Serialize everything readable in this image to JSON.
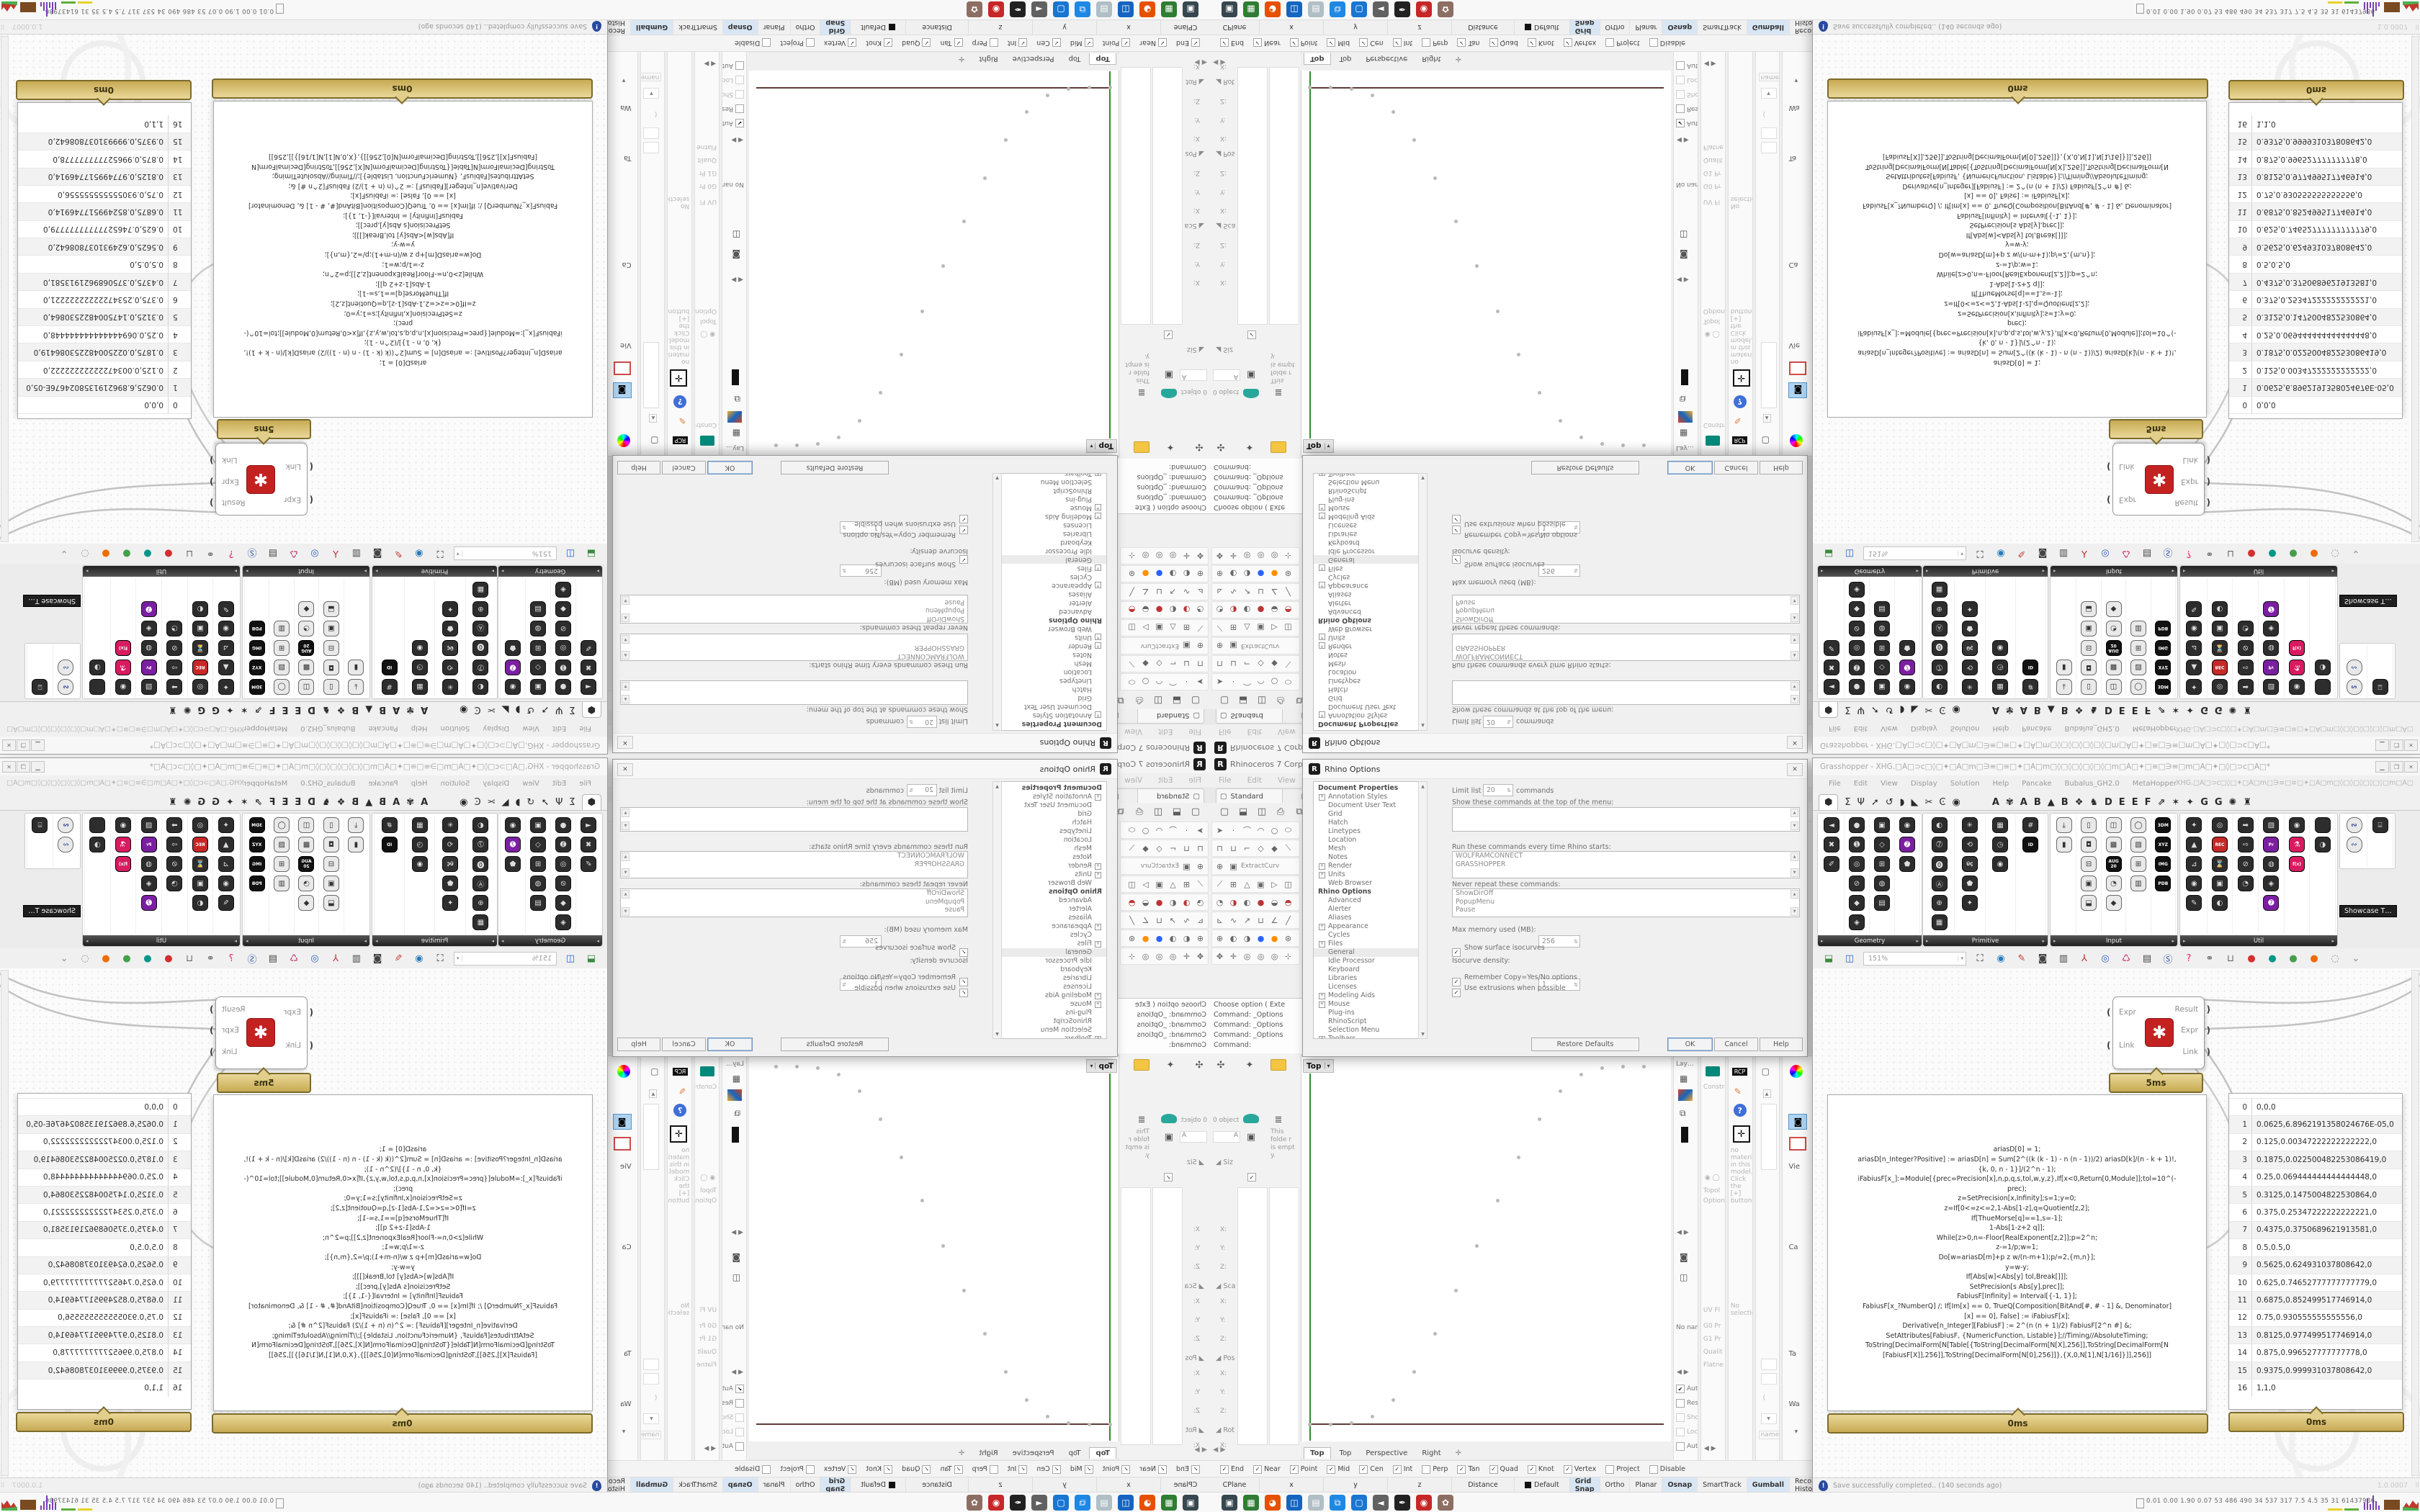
{
  "rhino": {
    "logo_letter": "R",
    "title": "Rhinoceros 7 Corporate -",
    "menu": [
      "File",
      "Edit",
      "View",
      "Curve"
    ],
    "toolbar_tab": "Standard",
    "toolbar_tab_glyph": "▢",
    "main_toolbar": [
      "▢",
      "⬓",
      "◫",
      "⎙",
      "⧉",
      "✂"
    ],
    "dock_rows": [
      [
        "➤",
        "·",
        "⌒",
        "◠",
        "○",
        "⬭"
      ],
      [
        "⊓",
        "⊔",
        "⌐",
        "◇",
        "◆",
        "⟍"
      ],
      [
        "⊕",
        "▣"
      ],
      [
        "⟋",
        "⊞",
        "△",
        "▣",
        "▷",
        "◫"
      ],
      [
        "◔",
        "◑",
        "◐",
        "●",
        "◒",
        "◓"
      ],
      [
        "⊾",
        "∿",
        "↗",
        "⊔",
        "∠",
        "╱"
      ],
      [
        "⊕",
        "◐",
        "◑",
        "●",
        "●",
        "⊛"
      ],
      [
        "✥",
        "✛",
        "◎",
        "◎",
        "◎",
        "⊹"
      ]
    ],
    "dock_row3_label": "ExtractCurv",
    "command_lines": [
      "Choose option ( Exte",
      "Command: _Options",
      "Command: _Options",
      "Command: _Options",
      "Command:"
    ],
    "left_panel": {
      "object_count": "0 object",
      "field_a": "A",
      "folder_note": "This folde r is empt y.",
      "size_section": "Siz",
      "sections": [
        "Sca",
        "Pos",
        "Rot"
      ],
      "axis_labels": [
        "X:",
        "Y:",
        "Z:"
      ],
      "nav": "◀ ▶"
    },
    "viewport": {
      "active_tab": "Top",
      "tab_caret": "▾",
      "tabs": [
        "Top",
        "Top",
        "Perspective",
        "Right"
      ],
      "new_tab": "✛"
    },
    "right_dock": {
      "layers_label": "Lay…",
      "noname_label": "No nam",
      "checks": [
        {
          "label": "Aut",
          "checked": true,
          "dim": false
        },
        {
          "label": "Res",
          "checked": false,
          "dim": false
        },
        {
          "label": "Sho",
          "checked": false,
          "dim": true
        },
        {
          "label": "Loc",
          "checked": false,
          "dim": true
        },
        {
          "label": "Aut",
          "checked": false,
          "dim": false
        }
      ],
      "colB_labels": [
        "Constra",
        "Topol",
        "Options:",
        "UV Fl",
        "G0 Pr",
        "G1 Pr",
        "Qualit",
        "Flatne"
      ],
      "rcp": "RCP",
      "material_note": "no material in this model. Click the [+] button",
      "selection": "No selection",
      "name_field": "name",
      "colE_labels": [
        "Vie",
        "Ca",
        "Ta",
        "Wa"
      ]
    },
    "osnap": [
      {
        "label": "End",
        "checked": true
      },
      {
        "label": "Near",
        "checked": true
      },
      {
        "label": "Point",
        "checked": true
      },
      {
        "label": "Mid",
        "checked": true
      },
      {
        "label": "Cen",
        "checked": true
      },
      {
        "label": "Int",
        "checked": true
      },
      {
        "label": "Perp",
        "checked": false
      },
      {
        "label": "Tan",
        "checked": true
      },
      {
        "label": "Quad",
        "checked": true
      },
      {
        "label": "Knot",
        "checked": true
      },
      {
        "label": "Vertex",
        "checked": true
      },
      {
        "label": "Project",
        "checked": false
      },
      {
        "label": "Disable",
        "checked": false
      }
    ],
    "status_cells": [
      "CPlane",
      "x",
      "y",
      "z",
      "Distance",
      "Default"
    ],
    "status_toggles": [
      {
        "label": "Grid Snap",
        "active": true
      },
      {
        "label": "Ortho",
        "active": false
      },
      {
        "label": "Planar",
        "active": false
      },
      {
        "label": "Osnap",
        "active": true
      },
      {
        "label": "SmartTrack",
        "active": false
      },
      {
        "label": "Gumball",
        "active": true
      },
      {
        "label": "Record History",
        "active": false
      },
      {
        "label": "Filter",
        "active": false
      },
      {
        "label": "A",
        "active": false
      }
    ]
  },
  "dialog": {
    "title": "Rhino Options",
    "close": "✕",
    "tree": [
      {
        "label": "Document Properties",
        "hd": true
      },
      {
        "label": "Annotation Styles",
        "plus": true
      },
      {
        "label": "Document User Text"
      },
      {
        "label": "Grid"
      },
      {
        "label": "Hatch"
      },
      {
        "label": "Linetypes"
      },
      {
        "label": "Location"
      },
      {
        "label": "Mesh"
      },
      {
        "label": "Notes"
      },
      {
        "label": "Render",
        "plus": true
      },
      {
        "label": "Units",
        "plus": true
      },
      {
        "label": "Web Browser"
      },
      {
        "label": "Rhino Options",
        "hd": true
      },
      {
        "label": "Advanced"
      },
      {
        "label": "Alerter"
      },
      {
        "label": "Aliases"
      },
      {
        "label": "Appearance",
        "plus": true
      },
      {
        "label": "Cycles"
      },
      {
        "label": "Files",
        "plus": true
      },
      {
        "label": "General",
        "sel": true
      },
      {
        "label": "Idle Processor"
      },
      {
        "label": "Keyboard"
      },
      {
        "label": "Libraries"
      },
      {
        "label": "Licenses"
      },
      {
        "label": "Modeling Aids",
        "plus": true
      },
      {
        "label": "Mouse",
        "plus": true
      },
      {
        "label": "Plug-ins"
      },
      {
        "label": "RhinoScript"
      },
      {
        "label": "Selection Menu"
      },
      {
        "label": "Toolbars",
        "plus": true
      }
    ],
    "limit_label": "Limit list to",
    "limit_value": "20",
    "limit_suffix": "commands",
    "top_menu_label": "Show these commands at the top of the menu:",
    "startup_label": "Run these commands every time Rhino starts:",
    "startup_commands": [
      "WOLFRAMCONNECT",
      "GRASSHOPPER"
    ],
    "never_label": "Never repeat these commands:",
    "never_commands": [
      "ShowDirOff",
      "PopupMenu",
      "Pause"
    ],
    "memory_label": "Max memory used (MB):",
    "memory_value": "256",
    "isocurves_check": "Show surface isocurves",
    "density_label": "Isocurve density:",
    "density_value": "1",
    "copy_check": "Remember Copy=Yes/No options",
    "extrusions_check": "Use extrusions when possible",
    "buttons": [
      "Restore Defaults",
      "OK",
      "Cancel",
      "Help"
    ]
  },
  "grasshopper": {
    "title": "Grasshopper - XHG.□A□⊃c□◊□✦□A□m□∋≡□≅□✦□A□m□◊□◊□◊□◊□◊□m□A□✦□≅□∋≡□m□A□✦□◊□⊃c□A□*",
    "doc_label": "XHG.□A□⊃c□◊□✦□A□m□∋≡□≅□✦□A□m□◊□◊□◊□◊□◊□m□A□✦□≅□∋≡□m□A□✦□◊□⊃c□A□",
    "window_buttons": [
      "▁",
      "❐",
      "✕"
    ],
    "menu": [
      "File",
      "Edit",
      "View",
      "Display",
      "Solution",
      "Help",
      "Pancake",
      "Bubalus_GH2.0",
      "MetaHopper"
    ],
    "icon_tabs": [
      "⬢",
      "Σ",
      "Ψ",
      "➚",
      "↺",
      "◗",
      "◣",
      "✂",
      "Ͼ",
      "◉"
    ],
    "letter_tabs": [
      "A",
      "✾",
      "A",
      "B",
      "▲",
      "B",
      "❖",
      "♞",
      "D",
      "E",
      "E",
      "F",
      "⇗",
      "✶",
      "✦",
      "G",
      "G",
      "✺",
      "♜"
    ],
    "palettes": [
      {
        "name": "Geometry",
        "cols": [
          [
            "◄",
            "✖",
            "✐"
          ],
          [
            "●",
            "➊",
            "◎",
            "⊘",
            "◆",
            "◈"
          ],
          [
            "▣",
            "◇",
            "⊞",
            "◍",
            "▤"
          ],
          [
            "◉",
            "➐",
            "⬟"
          ]
        ]
      },
      {
        "name": "Primitive",
        "cols": [
          [
            "◐",
            "➆",
            "⓿",
            "Ⓐ",
            "⊕",
            "▦"
          ],
          [
            "✳",
            "⟲",
            "ÜÇ",
            "⬟",
            "✦"
          ],
          [
            "▦",
            "◷",
            "◉"
          ],
          [
            "#",
            "ID"
          ]
        ]
      },
      {
        "name": "Input",
        "cols": [
          [
            "⤓",
            "▮"
          ],
          [
            "▯",
            "◘",
            "⊟",
            "▣",
            "⬓"
          ],
          [
            "◫",
            "▩",
            "AUG 20",
            "◔",
            "◆"
          ],
          [
            "◯",
            "▧",
            "⊞",
            "▥"
          ],
          [
            "3DM",
            "XYZ",
            "IMG",
            "PDB"
          ]
        ]
      },
      {
        "name": "Util",
        "cols": [
          [
            "✦",
            "▲",
            "⊿",
            "◉",
            "✎"
          ],
          [
            "◎",
            "REC",
            "⌛",
            "▣",
            "◐"
          ],
          [
            "➡",
            "⇨",
            "⊘",
            "◔"
          ],
          [
            "▧",
            "Pr",
            "◍",
            "◈",
            "➐"
          ],
          [
            "◉",
            "⚗",
            "f(x)"
          ],
          [
            "✿",
            "◑"
          ]
        ]
      }
    ],
    "showcase": {
      "icons": [
        "∾",
        "∾",
        "⌸"
      ],
      "tooltip": "Showcase T…"
    },
    "toolbar": {
      "zoom": "151%",
      "icons": [
        {
          "n": "open-document-icon",
          "g": "⬓",
          "c": "#3a8a3a"
        },
        {
          "n": "save-document-icon",
          "g": "◫",
          "c": "#2266cc"
        }
      ],
      "icons_after": [
        {
          "n": "zoom-extents-icon",
          "g": "⛶",
          "c": "#222"
        },
        {
          "n": "preview-eye-icon",
          "g": "◉",
          "c": "#2a7ab8"
        },
        {
          "n": "sketch-pen-icon",
          "g": "✎",
          "c": "#c0392b"
        },
        {
          "n": "camera-icon",
          "g": "◙",
          "c": "#444"
        },
        {
          "n": "remote-panel-icon",
          "g": "▥",
          "c": "#444"
        },
        {
          "n": "axes-widget-icon",
          "g": "⅄",
          "c": "#bb3333"
        },
        {
          "n": "cluster-icon",
          "g": "◎",
          "c": "#3366bb"
        },
        {
          "n": "gha-loader-icon",
          "g": "♺",
          "c": "#c2185b"
        },
        {
          "n": "script-doc-icon",
          "g": "▤",
          "c": "#444"
        },
        {
          "n": "find-icon",
          "g": "Ⓢ",
          "c": "#3355aa"
        },
        {
          "n": "surprise-box-icon",
          "g": "?",
          "c": "#e91e63"
        },
        {
          "n": "spheres-icon",
          "g": "⚭",
          "c": "#666"
        },
        {
          "n": "cylinder-icon",
          "g": "⊔",
          "c": "#666"
        },
        {
          "n": "red-ball-icon",
          "g": "●",
          "c": "#d32f2f"
        },
        {
          "n": "teal-ball-icon",
          "g": "●",
          "c": "#009688"
        },
        {
          "n": "green-ball-icon",
          "g": "●",
          "c": "#43a047"
        },
        {
          "n": "orange-ball-icon",
          "g": "●",
          "c": "#ef6c00"
        },
        {
          "n": "selection-lasso-icon",
          "g": "◌",
          "c": "#888"
        },
        {
          "n": "more-caret-icon",
          "g": "⌄",
          "c": "#888"
        }
      ]
    },
    "component": {
      "inputs": [
        "Expr",
        "Link"
      ],
      "outputs": [
        "Result",
        "Expr",
        "Link"
      ],
      "time": "5ms",
      "icon_glyph": "✱"
    },
    "code_panel": {
      "time": "0ms",
      "lines": [
        "ariasD[0] = 1;",
        "ariasD[n_Integer?Positive] := ariasD[n] = Sum[2^((k (k - 1) - n (n - 1))/2) ariasD[k]/(n - k + 1)!,",
        "{k, 0, n - 1}]/(2^n - 1);",
        "iFabiusF[x_]:=Module[{prec=Precision[x],n,p,q,s,tol,w,y,z},If[x<0,Return[0,Module]];tol=10^(-",
        "prec);",
        "z=SetPrecision[x,Infinity];s=1;y=0;",
        "z=If[0<=z<=2,1-Abs[1-z],q=Quotient[z,2];",
        "If[ThueMorse[q]==1,s=-1];",
        "1-Abs[1-z+2 q]];",
        "While[z>0,n=-Floor[RealExponent[z,2]];p=2^n;",
        "z-=1/p;w=1;",
        "Do[w=ariasD[m]+p z w/(n-m+1);p/=2,{m,n}];",
        "y=w-y;",
        "If[Abs[w]<Abs[y] tol,Break[]]];",
        "SetPrecision[s Abs[y],prec]];",
        "FabiusF[Infinity] = Interval[{-1, 1}];",
        "FabiusF[x_?NumberQ] /; If[Im[x] == 0, TrueQ[Composition[BitAnd[#, # - 1] &, Denominator]",
        "[x] == 0], False] := iFabiusF[x];",
        "Derivative[n_Integer][FabiusF] := 2^(n (n + 1)/2) FabiusF[2^n #] &;",
        "SetAttributes[FabiusF, {NumericFunction, Listable}];//Timing//AbsoluteTiming;",
        "",
        "ToString[DecimalForm[N[Table[{ToString[DecimalForm[N[X],256]],ToString[DecimalForm[N",
        "[FabiusF[X]],256]],ToString[DecimalForm[N[0],256]]},{X,0,N[1],N[1/16]}]],256]]"
      ]
    },
    "data_panel": {
      "time": "0ms",
      "rows": [
        {
          "i": "0",
          "v": "0,0,0"
        },
        {
          "i": "1",
          "v": "0.0625,6.8962191358024676E-05,0"
        },
        {
          "i": "2",
          "v": "0.125,0.00347222222222222,0"
        },
        {
          "i": "3",
          "v": "0.1875,0.022500482253086419,0"
        },
        {
          "i": "4",
          "v": "0.25,0.069444444444444448,0"
        },
        {
          "i": "5",
          "v": "0.3125,0.1475004822530864,0"
        },
        {
          "i": "6",
          "v": "0.375,0.25347222222222221,0"
        },
        {
          "i": "7",
          "v": "0.4375,0.3750689621913581,0"
        },
        {
          "i": "8",
          "v": "0.5,0.5,0"
        },
        {
          "i": "9",
          "v": "0.5625,0.624931037808642,0"
        },
        {
          "i": "10",
          "v": "0.625,0.74652777777777779,0"
        },
        {
          "i": "11",
          "v": "0.6875,0.852499517746914,0"
        },
        {
          "i": "12",
          "v": "0.75,0.930555555555556,0"
        },
        {
          "i": "13",
          "v": "0.8125,0.977499517746914,0"
        },
        {
          "i": "14",
          "v": "0.875,0.996527777777778,0"
        },
        {
          "i": "15",
          "v": "0.9375,0.999931037808642,0"
        },
        {
          "i": "16",
          "v": "1,1,0"
        }
      ]
    },
    "status": {
      "message": "Save successfully completed.. (140 seconds ago)",
      "version": "1.0.0007"
    }
  },
  "viewport_points": [
    [
      0,
      0
    ],
    [
      0.0625,
      6.9e-05
    ],
    [
      0.125,
      0.00347
    ],
    [
      0.1875,
      0.0225
    ],
    [
      0.25,
      0.0694
    ],
    [
      0.3125,
      0.1475
    ],
    [
      0.375,
      0.2535
    ],
    [
      0.4375,
      0.3751
    ],
    [
      0.5,
      0.5
    ],
    [
      0.5625,
      0.6249
    ],
    [
      0.625,
      0.7465
    ],
    [
      0.6875,
      0.8525
    ],
    [
      0.75,
      0.9306
    ],
    [
      0.8125,
      0.9775
    ],
    [
      0.875,
      0.9965
    ],
    [
      0.9375,
      0.9999
    ],
    [
      1,
      1
    ]
  ],
  "taskbar": {
    "numbers": "0.01 0.00 1.90 0.07   53   486  490   34   537  317   7.5   4.5   35   31   61437936",
    "icons": [
      {
        "n": "display-settings-icon",
        "c": "#37474f",
        "g": "▣"
      },
      {
        "n": "recorder-app-icon",
        "c": "#2e7d32",
        "g": "▦"
      },
      {
        "n": "firefox-icon",
        "c": "#e65100",
        "g": "◕"
      },
      {
        "n": "hex-editor-icon",
        "c": "#1565c0",
        "g": "◫"
      },
      {
        "n": "notepad-icon",
        "c": "#b0bec5",
        "g": "▤"
      },
      {
        "n": "dual-display-icon",
        "c": "#1e88e5",
        "g": "⧉"
      },
      {
        "n": "display-app-icon",
        "c": "#1976d2",
        "g": "▢"
      },
      {
        "n": "volume-icon",
        "c": "#616161",
        "g": "◄"
      },
      {
        "n": "sketch-app-icon",
        "c": "#212121",
        "g": "✒"
      },
      {
        "n": "red-app-icon",
        "c": "#c62828",
        "g": "◉"
      },
      {
        "n": "paint-palette-icon",
        "c": "#8d6e63",
        "g": "✿"
      }
    ]
  }
}
